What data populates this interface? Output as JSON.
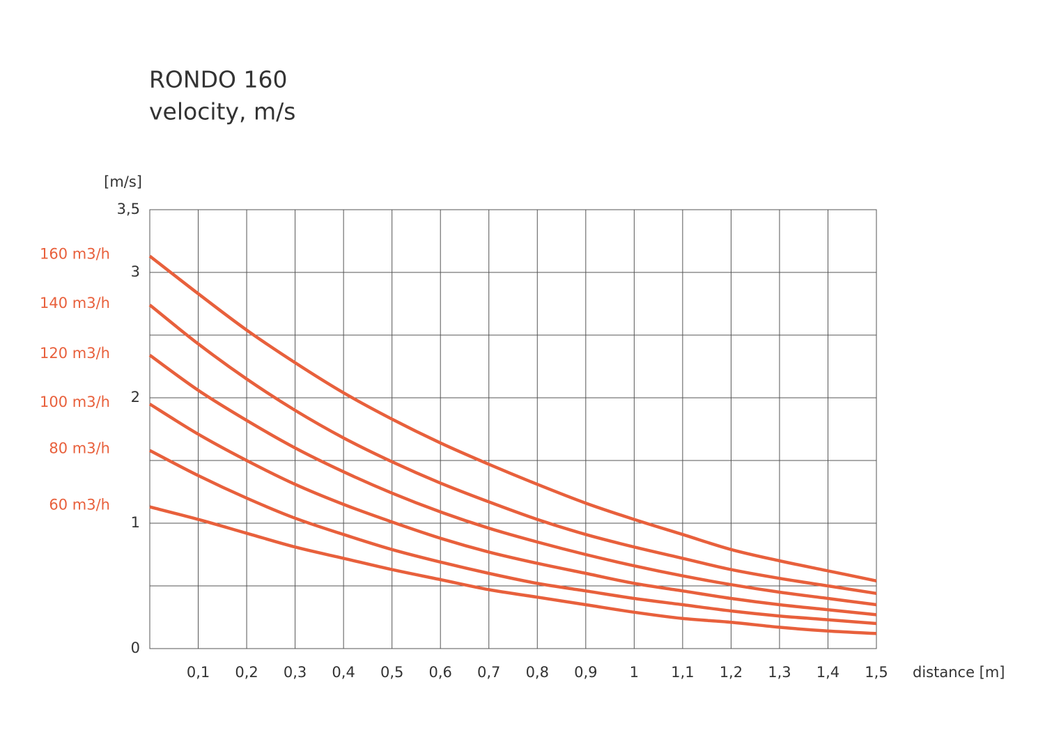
{
  "chart_data": {
    "type": "line",
    "title": "RONDO 160",
    "subtitle": "velocity, m/s",
    "y_label": "[m/s]",
    "x_label": "distance [m]",
    "x": [
      0,
      0.1,
      0.2,
      0.3,
      0.4,
      0.5,
      0.6,
      0.7,
      0.8,
      0.9,
      1,
      1.1,
      1.2,
      1.3,
      1.4,
      1.5
    ],
    "series": [
      {
        "name": "160 m3/h",
        "color": "#e8603c",
        "values": [
          3.13,
          2.83,
          2.54,
          2.28,
          2.04,
          1.83,
          1.64,
          1.47,
          1.31,
          1.16,
          1.03,
          0.91,
          0.79,
          0.7,
          0.62,
          0.54
        ]
      },
      {
        "name": "140 m3/h",
        "color": "#e8603c",
        "values": [
          2.74,
          2.43,
          2.15,
          1.9,
          1.68,
          1.49,
          1.32,
          1.17,
          1.03,
          0.91,
          0.81,
          0.72,
          0.63,
          0.56,
          0.5,
          0.44
        ]
      },
      {
        "name": "120 m3/h",
        "color": "#e8603c",
        "values": [
          2.34,
          2.06,
          1.82,
          1.6,
          1.41,
          1.24,
          1.09,
          0.96,
          0.85,
          0.75,
          0.66,
          0.58,
          0.51,
          0.45,
          0.4,
          0.35
        ]
      },
      {
        "name": "100 m3/h",
        "color": "#e8603c",
        "values": [
          1.95,
          1.71,
          1.5,
          1.31,
          1.15,
          1.01,
          0.88,
          0.77,
          0.68,
          0.6,
          0.52,
          0.46,
          0.4,
          0.35,
          0.31,
          0.27
        ]
      },
      {
        "name": "80 m3/h",
        "color": "#e8603c",
        "values": [
          1.58,
          1.38,
          1.2,
          1.04,
          0.91,
          0.79,
          0.69,
          0.6,
          0.52,
          0.46,
          0.4,
          0.35,
          0.3,
          0.26,
          0.23,
          0.2
        ]
      },
      {
        "name": "60 m3/h",
        "color": "#e8603c",
        "values": [
          1.13,
          1.03,
          0.92,
          0.81,
          0.72,
          0.63,
          0.55,
          0.47,
          0.41,
          0.35,
          0.29,
          0.24,
          0.21,
          0.17,
          0.14,
          0.12
        ]
      }
    ],
    "xlim": [
      0,
      1.5
    ],
    "xticks": [
      {
        "value": 0.1,
        "label": "0,1"
      },
      {
        "value": 0.2,
        "label": "0,2"
      },
      {
        "value": 0.3,
        "label": "0,3"
      },
      {
        "value": 0.4,
        "label": "0,4"
      },
      {
        "value": 0.5,
        "label": "0,5"
      },
      {
        "value": 0.6,
        "label": "0,6"
      },
      {
        "value": 0.7,
        "label": "0,7"
      },
      {
        "value": 0.8,
        "label": "0,8"
      },
      {
        "value": 0.9,
        "label": "0,9"
      },
      1,
      {
        "value": 1.1,
        "label": "1,1"
      },
      {
        "value": 1.2,
        "label": "1,2"
      },
      {
        "value": 1.3,
        "label": "1,3"
      },
      {
        "value": 1.4,
        "label": "1,4"
      },
      {
        "value": 1.5,
        "label": "1,5"
      }
    ],
    "ylim": [
      0,
      3.5
    ],
    "yticks": [
      0,
      1,
      2,
      3,
      {
        "value": 3.5,
        "label": "3,5"
      }
    ],
    "yminor": [
      0.5,
      1.5,
      2.5
    ],
    "grid": true
  }
}
